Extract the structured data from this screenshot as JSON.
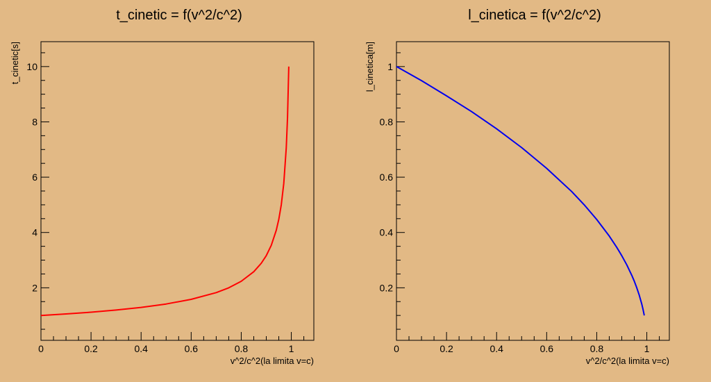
{
  "chart_data": [
    {
      "type": "line",
      "title": "t_cinetic = f(v^2/c^2)",
      "xlabel": "v^2/c^2(la limita v=c)",
      "ylabel": "t_cinetic[s]",
      "xlim": [
        0,
        1.09
      ],
      "ylim": [
        0.1,
        10.9
      ],
      "xticks": [
        0,
        0.2,
        0.4,
        0.6,
        0.8,
        1
      ],
      "xtick_labels": [
        "0",
        "0.2",
        "0.4",
        "0.6",
        "0.8",
        "1"
      ],
      "yticks": [
        2,
        4,
        6,
        8,
        10
      ],
      "ytick_labels": [
        "2",
        "4",
        "6",
        "8",
        "10"
      ],
      "series": [
        {
          "color": "#ff0000",
          "x": [
            0,
            0.1,
            0.2,
            0.3,
            0.4,
            0.5,
            0.6,
            0.7,
            0.75,
            0.8,
            0.85,
            0.88,
            0.9,
            0.92,
            0.94,
            0.95,
            0.96,
            0.97,
            0.98,
            0.985,
            0.99
          ],
          "y": [
            1.0,
            1.054,
            1.118,
            1.195,
            1.291,
            1.414,
            1.581,
            1.826,
            2.0,
            2.236,
            2.582,
            2.887,
            3.162,
            3.536,
            4.082,
            4.472,
            5.0,
            5.774,
            7.071,
            8.165,
            10.0
          ]
        }
      ]
    },
    {
      "type": "line",
      "title": "l_cinetica = f(v^2/c^2)",
      "xlabel": "v^2/c^2(la limita v=c)",
      "ylabel": "l_cinetica[m]",
      "xlim": [
        0,
        1.09
      ],
      "ylim": [
        0.01,
        1.09
      ],
      "xticks": [
        0,
        0.2,
        0.4,
        0.6,
        0.8,
        1
      ],
      "xtick_labels": [
        "0",
        "0.2",
        "0.4",
        "0.6",
        "0.8",
        "1"
      ],
      "yticks": [
        0.2,
        0.4,
        0.6,
        0.8,
        1
      ],
      "ytick_labels": [
        "0.2",
        "0.4",
        "0.6",
        "0.8",
        "1"
      ],
      "series": [
        {
          "color": "#0000ee",
          "x": [
            0,
            0.1,
            0.2,
            0.3,
            0.4,
            0.5,
            0.6,
            0.7,
            0.75,
            0.8,
            0.85,
            0.88,
            0.9,
            0.92,
            0.94,
            0.95,
            0.96,
            0.97,
            0.98,
            0.985,
            0.99
          ],
          "y": [
            1.0,
            0.949,
            0.894,
            0.837,
            0.775,
            0.707,
            0.632,
            0.548,
            0.5,
            0.447,
            0.387,
            0.346,
            0.316,
            0.283,
            0.245,
            0.224,
            0.2,
            0.173,
            0.141,
            0.122,
            0.1
          ]
        }
      ]
    }
  ]
}
